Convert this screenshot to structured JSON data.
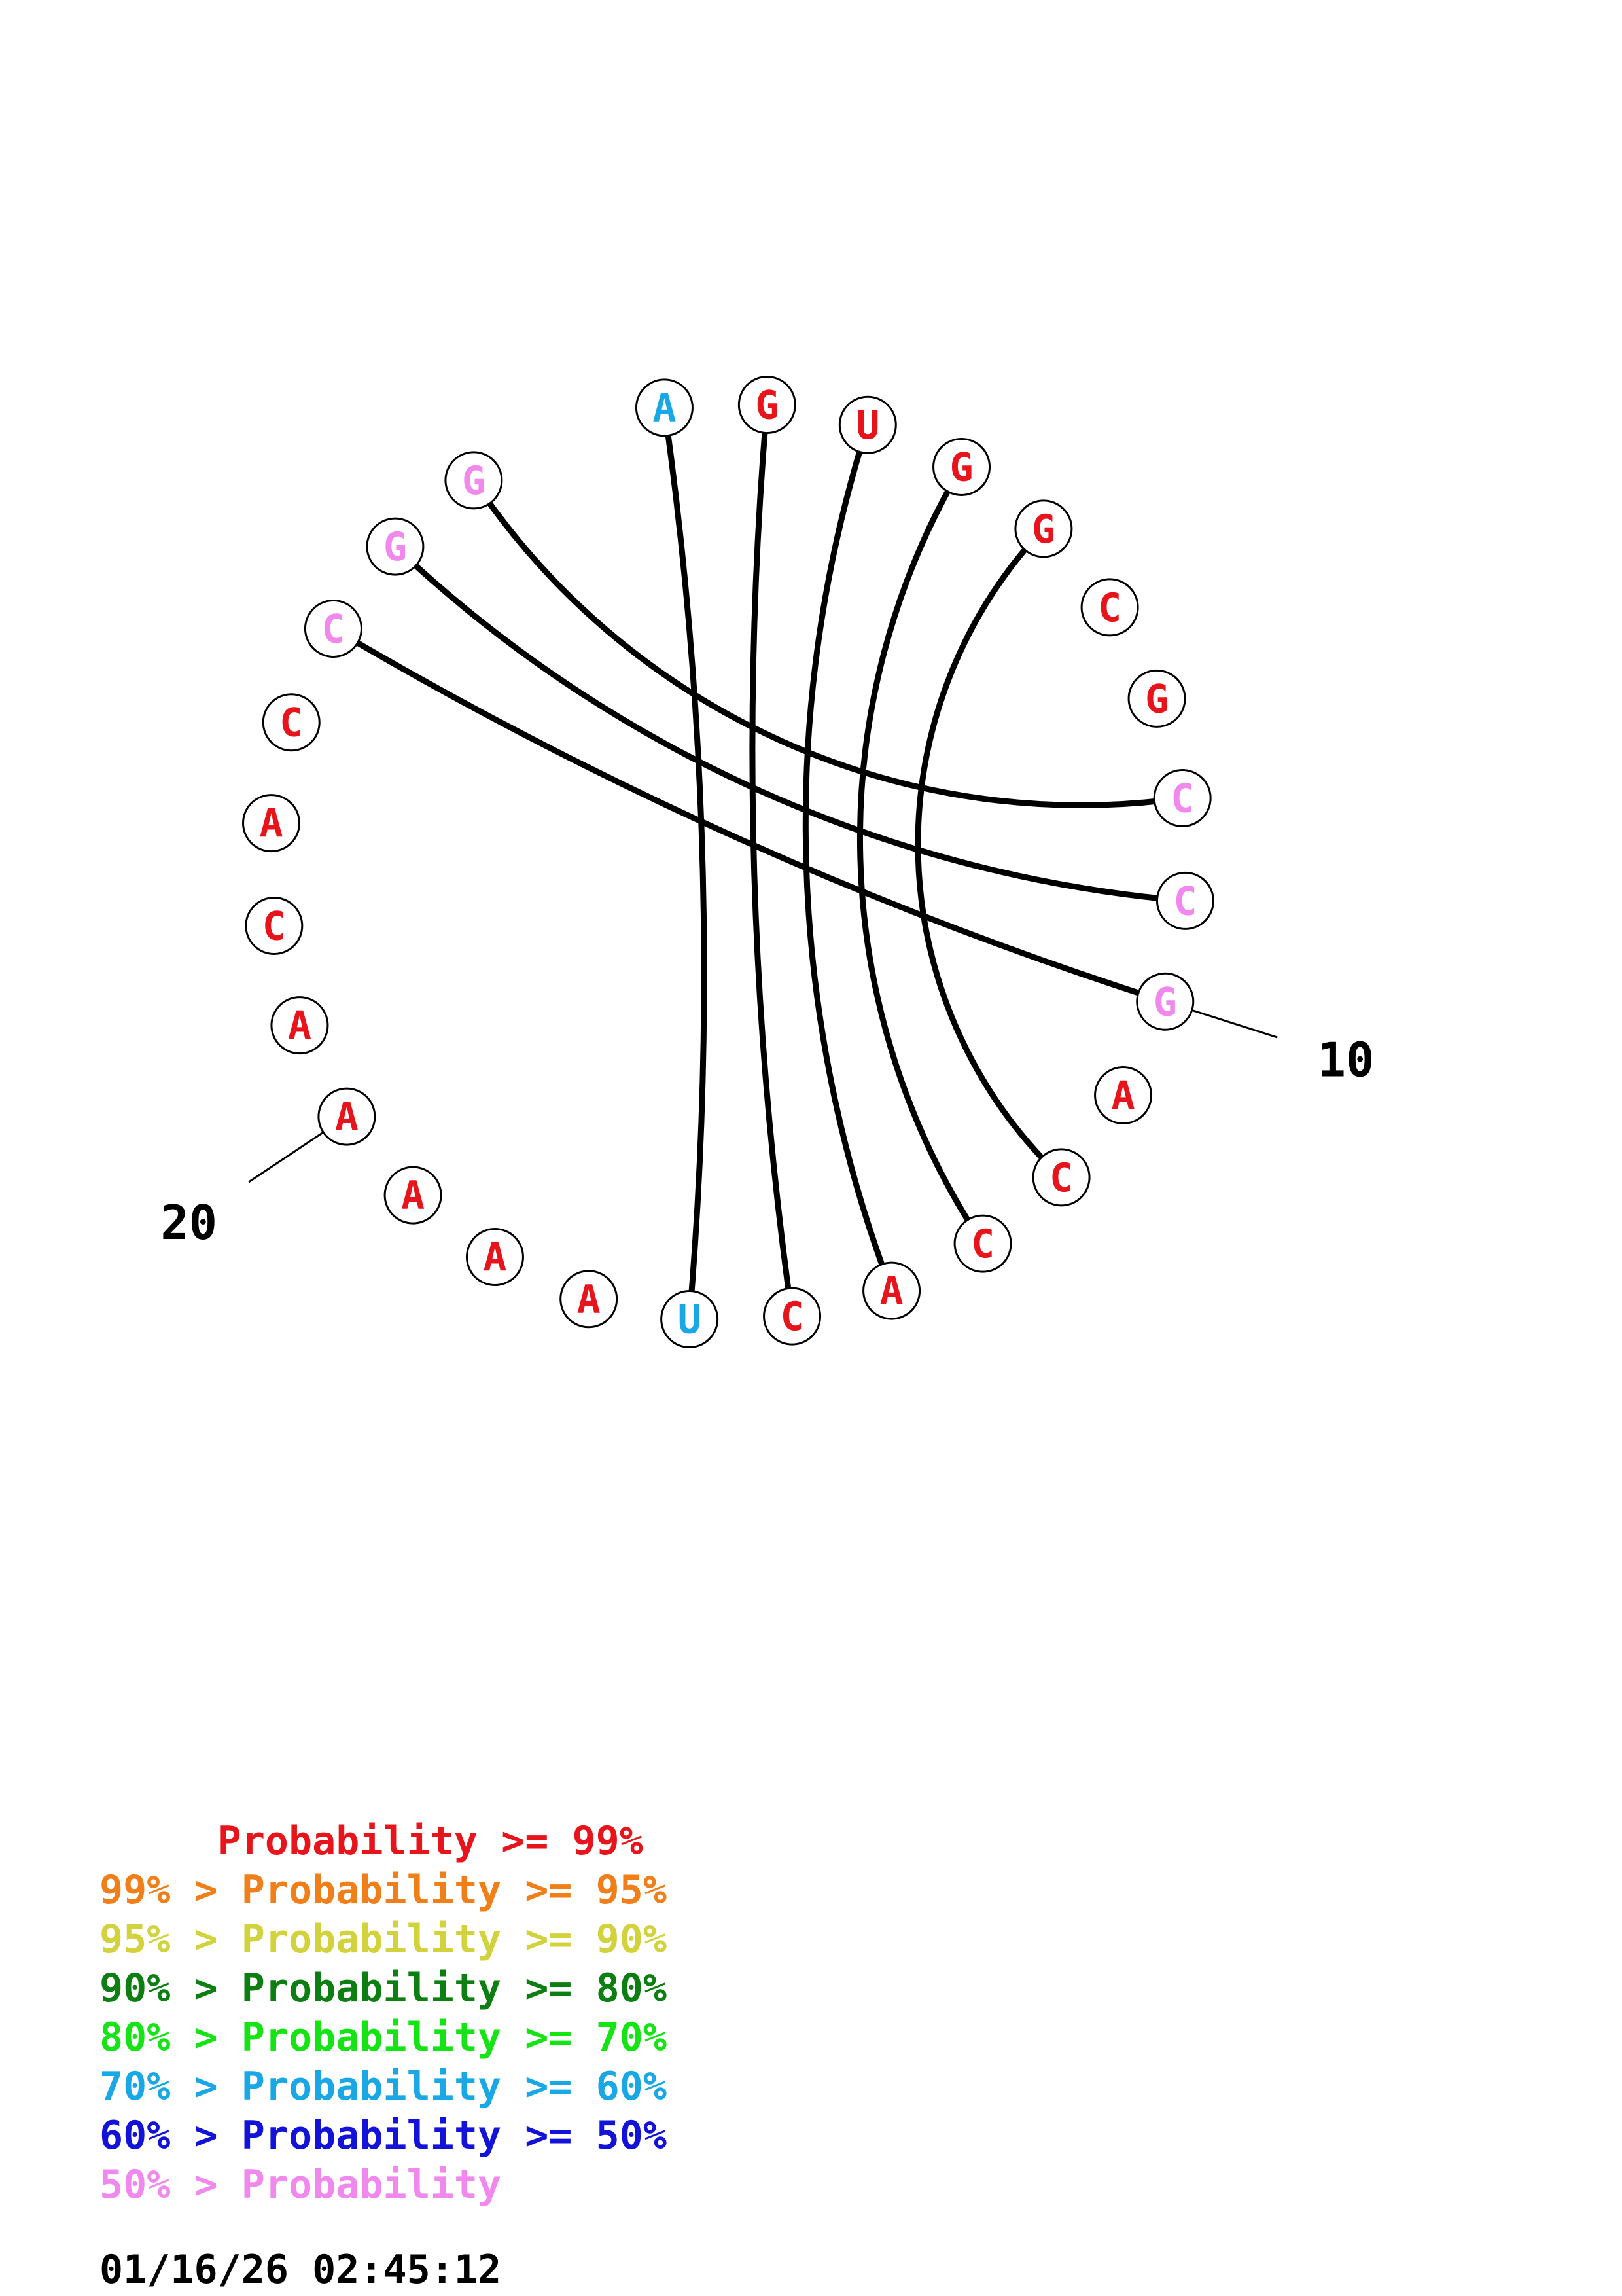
{
  "sequence": [
    "A",
    "G",
    "U",
    "G",
    "G",
    "C",
    "G",
    "C",
    "C",
    "G",
    "A",
    "C",
    "C",
    "A",
    "C",
    "U",
    "A",
    "A",
    "A",
    "A",
    "A",
    "C",
    "A",
    "C",
    "C",
    "G",
    "G"
  ],
  "nucleotide_colors": [
    "#1AA7E6",
    "#E8141B",
    "#E8141B",
    "#E8141B",
    "#E8141B",
    "#E8141B",
    "#E8141B",
    "#F188EE",
    "#F188EE",
    "#F188EE",
    "#E8141B",
    "#E8141B",
    "#E8141B",
    "#E8141B",
    "#E8141B",
    "#1AA7E6",
    "#E8141B",
    "#E8141B",
    "#E8141B",
    "#E8141B",
    "#E8141B",
    "#E8141B",
    "#E8141B",
    "#E8141B",
    "#F188EE",
    "#F188EE",
    "#F188EE"
  ],
  "pairs": [
    [
      1,
      16
    ],
    [
      2,
      15
    ],
    [
      3,
      14
    ],
    [
      4,
      13
    ],
    [
      5,
      12
    ],
    [
      8,
      27
    ],
    [
      9,
      26
    ],
    [
      10,
      25
    ]
  ],
  "index_labels": [
    {
      "position": 10,
      "text": "10"
    },
    {
      "position": 20,
      "text": "20"
    }
  ],
  "legend": [
    {
      "text": "     Probability >= 99%",
      "color": "#E8141B"
    },
    {
      "text": "99% > Probability >= 95%",
      "color": "#F07F1A"
    },
    {
      "text": "95% > Probability >= 90%",
      "color": "#D2D23C"
    },
    {
      "text": "90% > Probability >= 80%",
      "color": "#0C7E12"
    },
    {
      "text": "80% > Probability >= 70%",
      "color": "#14E414"
    },
    {
      "text": "70% > Probability >= 60%",
      "color": "#1AA7E6"
    },
    {
      "text": "60% > Probability >= 50%",
      "color": "#1212D8"
    },
    {
      "text": "50% > Probability",
      "color": "#F188EE"
    }
  ],
  "timestamp": "01/16/26 02:45:12"
}
